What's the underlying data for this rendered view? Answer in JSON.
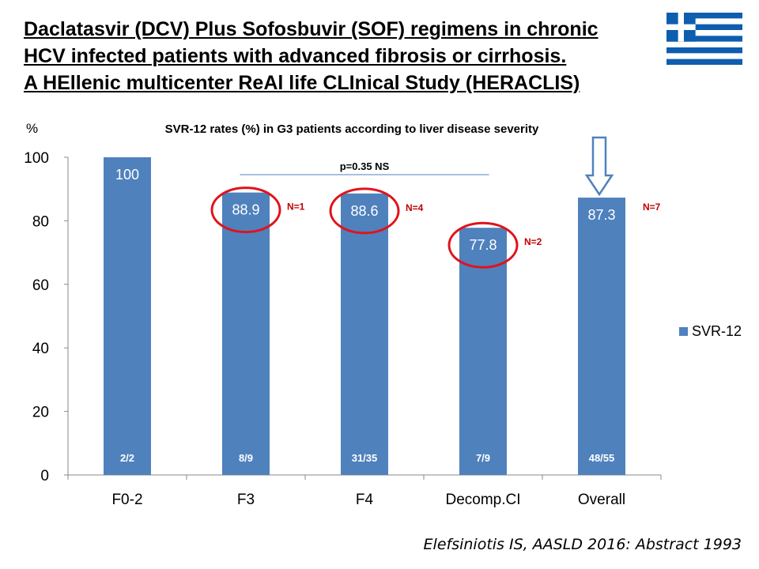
{
  "title_lines": [
    "Daclatasvir (DCV) Plus Sofosbuvir (SOF) regimens in chronic",
    "HCV infected patients with advanced fibrosis or cirrhosis.",
    "A HEllenic multicenter ReAl life CLInical Study (HERACLIS)"
  ],
  "citation": "Elefsiniotis IS, AASLD 2016: Abstract 1993",
  "colors": {
    "bar": "#4f81bd",
    "circle": "#e0131b",
    "n_label": "#c00000",
    "arrow": "#4f81bd"
  },
  "chart_data": {
    "type": "bar",
    "title": "SVR-12 rates (%) in G3 patients according to liver disease severity",
    "ylabel": "%",
    "xlabel": "",
    "ylim": [
      0,
      100
    ],
    "yticks": [
      0,
      20,
      40,
      60,
      80,
      100
    ],
    "categories": [
      "F0-2",
      "F3",
      "F4",
      "Decomp.CI",
      "Overall"
    ],
    "series": [
      {
        "name": "SVR-12",
        "values": [
          100,
          88.9,
          88.6,
          77.8,
          87.3
        ]
      }
    ],
    "data_labels": [
      "100",
      "88.9",
      "88.6",
      "77.8",
      "87.3"
    ],
    "fractions": [
      "2/2",
      "8/9",
      "31/35",
      "7/9",
      "48/55"
    ],
    "n_labels": [
      "",
      "N=1",
      "N=4",
      "N=2",
      "N=7"
    ],
    "circled": [
      false,
      true,
      true,
      true,
      false
    ],
    "arrow_on": "Overall",
    "annotation": "p=0.35 NS",
    "legend_position": "right",
    "grid": false
  }
}
